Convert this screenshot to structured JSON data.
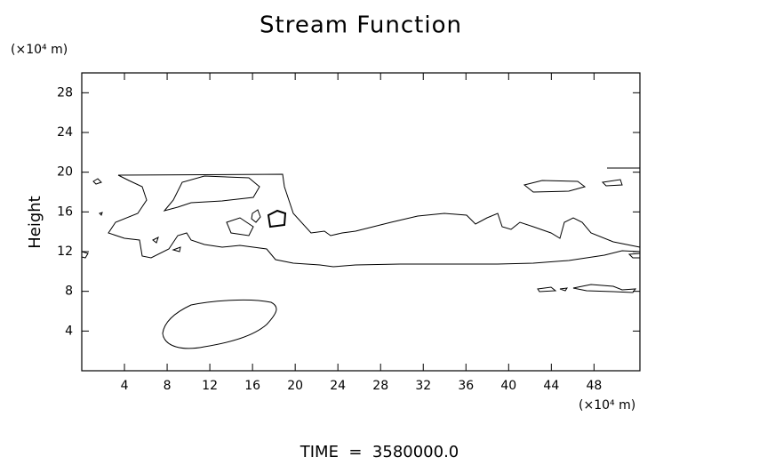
{
  "chart_data": {
    "type": "contour",
    "title": "Stream Function",
    "y_label": "Height",
    "y_unit": "(×10⁴ m)",
    "x_unit": "(×10⁴ m)",
    "footer": "TIME  =  3580000.0",
    "xlim": [
      0,
      52.3
    ],
    "ylim": [
      0,
      30
    ],
    "xticks": [
      4,
      8,
      12,
      16,
      20,
      24,
      28,
      32,
      36,
      40,
      44,
      48
    ],
    "yticks": [
      4,
      8,
      12,
      16,
      20,
      24,
      28
    ],
    "color": "#000000"
  }
}
